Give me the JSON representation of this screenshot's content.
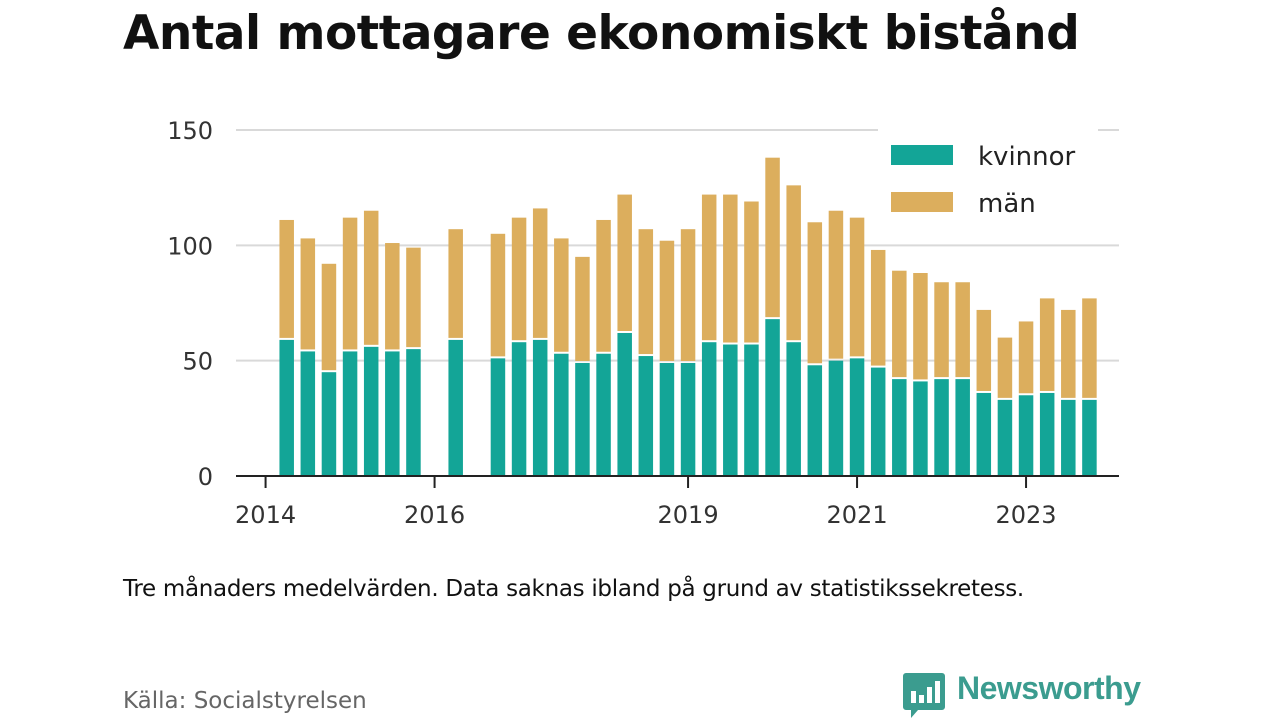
{
  "title": "Antal mottagare ekonomiskt bistånd",
  "note": "Tre månaders medelvärden. Data saknas ibland på grund av statistikssekretess.",
  "source": "Källa: Socialstyrelsen",
  "brand": {
    "name": "Newsworthy",
    "logo_icon": "newsworthy-logo-icon"
  },
  "colors": {
    "women": "#13a597",
    "men": "#dcae5d",
    "grid": "#d9d9d9",
    "axis": "#222222"
  },
  "chart_data": {
    "type": "bar",
    "stacked": true,
    "title": "Antal mottagare ekonomiskt bistånd",
    "xlabel": "",
    "ylabel": "",
    "ylim": [
      0,
      150
    ],
    "yticks": [
      0,
      50,
      100,
      150
    ],
    "xlim": [
      2013.65,
      2024.1
    ],
    "xticks": [
      {
        "value": 2014.0,
        "label": "2014"
      },
      {
        "value": 2016.0,
        "label": "2016"
      },
      {
        "value": 2019.0,
        "label": "2019"
      },
      {
        "value": 2021.0,
        "label": "2021"
      },
      {
        "value": 2023.0,
        "label": "2023"
      }
    ],
    "grid": true,
    "legend_position": "top-right",
    "series": [
      {
        "name": "kvinnor",
        "values": [
          59,
          54,
          45,
          54,
          56,
          54,
          55,
          null,
          59,
          null,
          51,
          58,
          59,
          53,
          49,
          53,
          62,
          52,
          49,
          49,
          58,
          57,
          57,
          68,
          58,
          48,
          50,
          51,
          47,
          42,
          41,
          42,
          42,
          36,
          33,
          35,
          36,
          33,
          33
        ]
      },
      {
        "name": "män",
        "values": [
          52,
          49,
          47,
          58,
          59,
          47,
          44,
          null,
          48,
          null,
          54,
          54,
          57,
          50,
          46,
          58,
          60,
          55,
          53,
          58,
          64,
          65,
          62,
          70,
          68,
          62,
          65,
          61,
          51,
          47,
          47,
          42,
          42,
          36,
          27,
          32,
          41,
          39,
          44
        ]
      }
    ],
    "x": [
      2014.25,
      2014.5,
      2014.75,
      2015.0,
      2015.25,
      2015.5,
      2015.75,
      2016.0,
      2016.25,
      2016.5,
      2016.75,
      2017.0,
      2017.25,
      2017.5,
      2017.75,
      2018.0,
      2018.25,
      2018.5,
      2018.75,
      2019.0,
      2019.25,
      2019.5,
      2019.75,
      2020.0,
      2020.25,
      2020.5,
      2020.75,
      2021.0,
      2021.25,
      2021.5,
      2021.75,
      2022.0,
      2022.25,
      2022.5,
      2022.75,
      2023.0,
      2023.25,
      2023.5,
      2023.75
    ]
  }
}
